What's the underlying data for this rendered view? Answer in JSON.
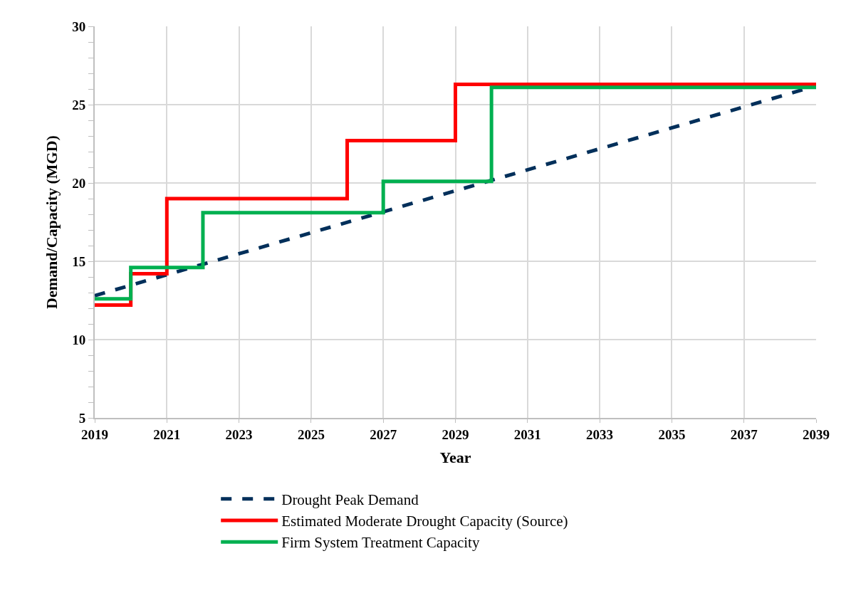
{
  "chart_data": {
    "type": "line",
    "xlabel": "Year",
    "ylabel": "Demand/Capacity (MGD)",
    "xlim": [
      2019,
      2039
    ],
    "xticks": [
      2019,
      2021,
      2023,
      2025,
      2027,
      2029,
      2031,
      2033,
      2035,
      2037,
      2039
    ],
    "ylim": [
      5,
      30
    ],
    "yticks": [
      5,
      {
        "value": 6,
        "label": null
      },
      {
        "value": 7,
        "label": null
      },
      {
        "value": 8,
        "label": null
      },
      {
        "value": 9,
        "label": null
      },
      10,
      {
        "value": 11,
        "label": null
      },
      {
        "value": 12,
        "label": null
      },
      {
        "value": 13,
        "label": null
      },
      {
        "value": 14,
        "label": null
      },
      15,
      {
        "value": 16,
        "label": null
      },
      {
        "value": 17,
        "label": null
      },
      {
        "value": 18,
        "label": null
      },
      {
        "value": 19,
        "label": null
      },
      20,
      {
        "value": 21,
        "label": null
      },
      {
        "value": 22,
        "label": null
      },
      {
        "value": 23,
        "label": null
      },
      {
        "value": 24,
        "label": null
      },
      25,
      {
        "value": 26,
        "label": null
      },
      {
        "value": 27,
        "label": null
      },
      {
        "value": 28,
        "label": null
      },
      {
        "value": 29,
        "label": null
      },
      30
    ],
    "grid": true,
    "legend": "bottom",
    "series": [
      {
        "name": "Drought Peak Demand",
        "line_style": "dashed",
        "color": "#002f5a",
        "x": [
          2019,
          2039
        ],
        "values": [
          12.8,
          26.2
        ]
      },
      {
        "name": "Estimated Moderate Drought Capacity (Source)",
        "type": "step",
        "line_style": "solid",
        "color": "#ff0000",
        "x": [
          2019,
          2020,
          2021,
          2026,
          2029,
          2039
        ],
        "values": [
          12.2,
          14.2,
          19.0,
          22.7,
          26.3,
          26.3
        ]
      },
      {
        "name": "Firm System Treatment Capacity",
        "type": "step",
        "line_style": "solid",
        "color": "#00b050",
        "x": [
          2019,
          2020,
          2022,
          2027,
          2030,
          2039
        ],
        "values": [
          12.6,
          14.6,
          18.1,
          20.1,
          26.1,
          26.1
        ]
      }
    ]
  }
}
